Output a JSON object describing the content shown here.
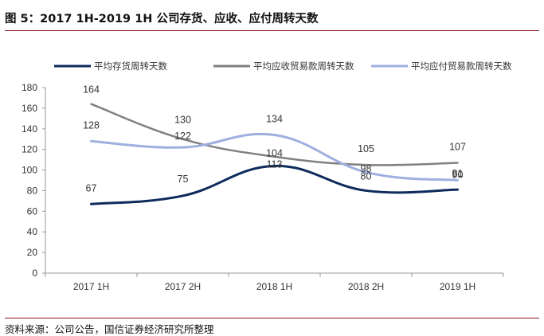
{
  "header": {
    "title": "图 5：2017 1H-2019 1H 公司存货、应收、应付周转天数"
  },
  "footer": {
    "source": "资料来源：公司公告，国信证券经济研究所整理"
  },
  "chart_data": {
    "type": "line",
    "categories": [
      "2017 1H",
      "2017 2H",
      "2018 1H",
      "2018 2H",
      "2019 1H"
    ],
    "ylim": [
      0,
      180
    ],
    "yticks": [
      0,
      20,
      40,
      60,
      80,
      100,
      120,
      140,
      160,
      180
    ],
    "grid": false,
    "legend_position": "top",
    "series": [
      {
        "name": "平均存货周转天数",
        "color": "#0d2b5c",
        "values": [
          67,
          75,
          104,
          80,
          81
        ]
      },
      {
        "name": "平均应收贸易款周转天数",
        "color": "#808080",
        "values": [
          164,
          130,
          113,
          105,
          107
        ]
      },
      {
        "name": "平均应付贸易款周转天数",
        "color": "#9fb0e0",
        "values": [
          128,
          122,
          134,
          98,
          90
        ]
      }
    ]
  }
}
